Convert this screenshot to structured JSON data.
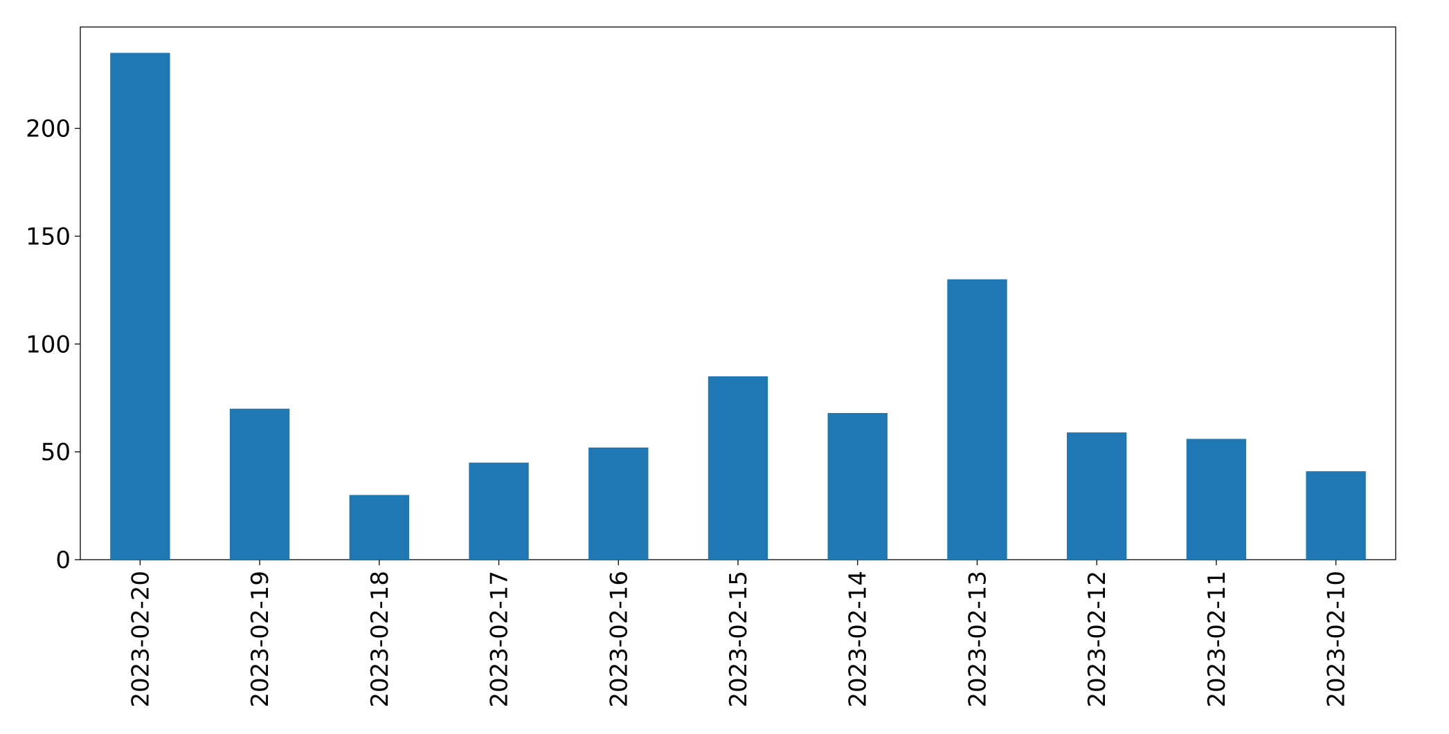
{
  "chart_data": {
    "type": "bar",
    "categories": [
      "2023-02-20",
      "2023-02-19",
      "2023-02-18",
      "2023-02-17",
      "2023-02-16",
      "2023-02-15",
      "2023-02-14",
      "2023-02-13",
      "2023-02-12",
      "2023-02-11",
      "2023-02-10"
    ],
    "values": [
      235,
      70,
      30,
      45,
      52,
      85,
      68,
      130,
      59,
      56,
      41
    ],
    "color": "#1f77b4",
    "ylim": [
      0,
      247
    ],
    "yticks": [
      0,
      50,
      100,
      150,
      200
    ],
    "grid": false
  }
}
